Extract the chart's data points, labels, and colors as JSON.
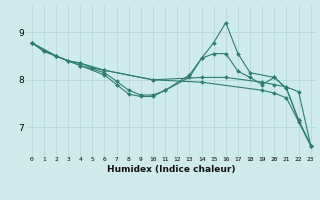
{
  "xlabel": "Humidex (Indice chaleur)",
  "ylabel": "",
  "bg_color": "#ceeaea",
  "grid_color": "#b0d5d5",
  "line_color": "#2e7d72",
  "xlim": [
    -0.5,
    23.5
  ],
  "ylim": [
    6.4,
    9.55
  ],
  "yticks": [
    7,
    8,
    9
  ],
  "xticks": [
    0,
    1,
    2,
    3,
    4,
    5,
    6,
    7,
    8,
    9,
    10,
    11,
    12,
    13,
    14,
    15,
    16,
    17,
    18,
    19,
    20,
    21,
    22,
    23
  ],
  "lines": [
    {
      "x": [
        0,
        1,
        2,
        3,
        4,
        6,
        10,
        14,
        16,
        19,
        20,
        21,
        22,
        23
      ],
      "y": [
        8.78,
        8.6,
        8.5,
        8.4,
        8.35,
        8.2,
        8.0,
        8.05,
        8.05,
        7.95,
        7.9,
        7.85,
        7.75,
        6.62
      ]
    },
    {
      "x": [
        0,
        2,
        4,
        6,
        7,
        8,
        9,
        10,
        11,
        13,
        14,
        15,
        16,
        17,
        18,
        20,
        21,
        22,
        23
      ],
      "y": [
        8.78,
        8.5,
        8.3,
        8.15,
        7.97,
        7.78,
        7.68,
        7.68,
        7.78,
        8.1,
        8.45,
        8.78,
        9.2,
        8.55,
        8.15,
        8.05,
        7.82,
        7.15,
        6.62
      ]
    },
    {
      "x": [
        0,
        2,
        4,
        6,
        7,
        8,
        9,
        10,
        11,
        13,
        14,
        15,
        16,
        17,
        18,
        19,
        20,
        21,
        22,
        23
      ],
      "y": [
        8.78,
        8.5,
        8.3,
        8.1,
        7.9,
        7.7,
        7.65,
        7.65,
        7.78,
        8.05,
        8.45,
        8.55,
        8.55,
        8.18,
        8.05,
        7.9,
        8.05,
        7.82,
        7.15,
        6.62
      ]
    },
    {
      "x": [
        0,
        1,
        2,
        3,
        4,
        5,
        6,
        10,
        14,
        19,
        20,
        21,
        22,
        23
      ],
      "y": [
        8.78,
        8.6,
        8.5,
        8.4,
        8.35,
        8.25,
        8.2,
        8.0,
        7.95,
        7.78,
        7.72,
        7.62,
        7.12,
        6.62
      ]
    }
  ]
}
